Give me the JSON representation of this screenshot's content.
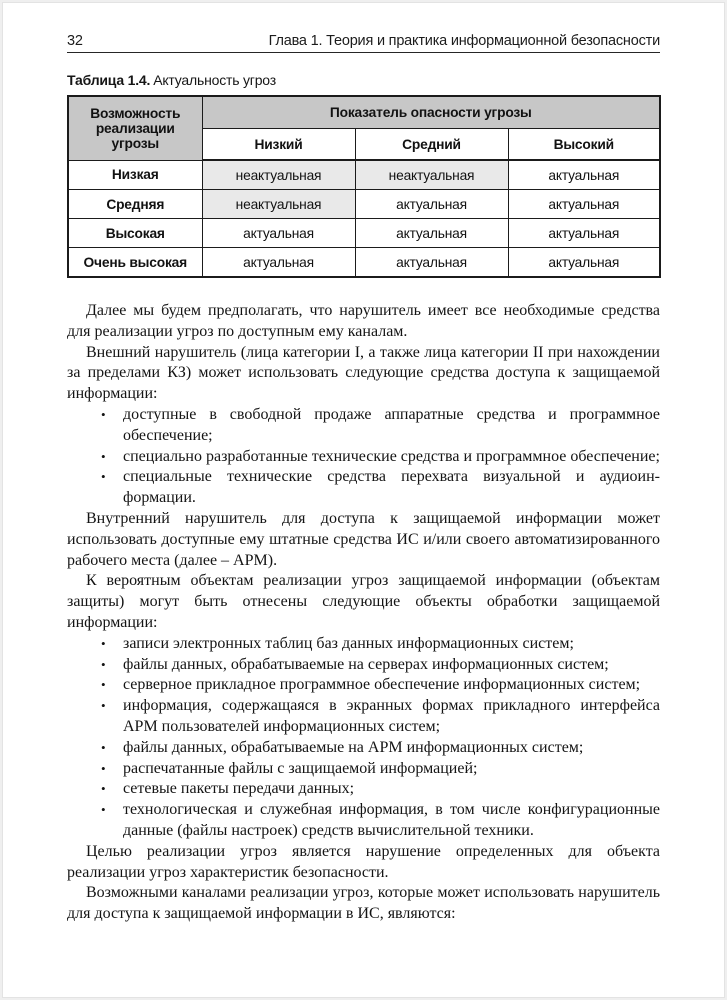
{
  "colors": {
    "header_gray": "#c7c7c7",
    "shaded_cell": "#e9e9e9",
    "table_border": "#1b1b1b"
  },
  "header": {
    "page_number": "32",
    "chapter_title": "Глава 1. Теория и практика информационной безопасности"
  },
  "caption": {
    "label": "Таблица 1.4.",
    "title": "Актуальность угроз"
  },
  "table": {
    "corner_header": "Возможность реализации угрозы",
    "group_header": "Показатель опасности угрозы",
    "col_headers": [
      "Низкий",
      "Средний",
      "Высокий"
    ],
    "rows": [
      {
        "label": "Низкая",
        "cells": [
          {
            "text": "неактуальная",
            "shaded": true
          },
          {
            "text": "неактуальная",
            "shaded": true
          },
          {
            "text": "актуальная",
            "shaded": false
          }
        ]
      },
      {
        "label": "Средняя",
        "cells": [
          {
            "text": "неактуальная",
            "shaded": true
          },
          {
            "text": "актуальная",
            "shaded": false
          },
          {
            "text": "актуальная",
            "shaded": false
          }
        ]
      },
      {
        "label": "Высокая",
        "cells": [
          {
            "text": "актуальная",
            "shaded": false
          },
          {
            "text": "актуальная",
            "shaded": false
          },
          {
            "text": "актуальная",
            "shaded": false
          }
        ]
      },
      {
        "label": "Очень высокая",
        "cells": [
          {
            "text": "актуальная",
            "shaded": false
          },
          {
            "text": "актуальная",
            "shaded": false
          },
          {
            "text": "актуальная",
            "shaded": false
          }
        ]
      }
    ]
  },
  "body": [
    {
      "type": "p",
      "text": "Далее мы будем предполагать, что нарушитель имеет все необходимые средства для реализации угроз по доступным ему каналам."
    },
    {
      "type": "p",
      "text": "Внешний нарушитель (лица категории I, а также лица категории II при на­хождении за пределами КЗ) может использовать следующие средства доступа к защищаемой информации:"
    },
    {
      "type": "ul",
      "items": [
        "доступные в свободной продаже аппаратные средства и программное обеспечение;",
        "специально разработанные технические средства и программное обес­печение;",
        "специальные технические средства перехвата визуальной и аудиоин­формации."
      ]
    },
    {
      "type": "p",
      "text": "Внутренний нарушитель для доступа к защищаемой информации может использовать доступные ему штатные средства ИС и/или своего автомати­зированного рабочего места (далее – АРМ)."
    },
    {
      "type": "p",
      "text": "К вероятным объектам реализации угроз защищаемой информации (объ­ектам защиты) могут быть отнесены следующие объекты обработки защи­щаемой информации:"
    },
    {
      "type": "ul",
      "items": [
        "записи электронных таблиц баз данных информационных систем;",
        "файлы данных, обрабатываемые на серверах информационных систем;",
        "серверное прикладное программное обеспечение информационных си­стем;",
        "информация, содержащаяся в экранных формах прикладного интер­фейса АРМ пользователей информационных систем;",
        "файлы данных, обрабатываемые на АРМ информационных систем;",
        "распечатанные файлы с защищаемой информацией;",
        "сетевые пакеты передачи данных;",
        "технологическая и служебная информация, в том числе конфигурацион­ные данные (файлы настроек) средств вычислительной техники."
      ]
    },
    {
      "type": "p",
      "text": "Целью реализации угроз является нарушение определенных для объекта реализации угроз характеристик безопасности."
    },
    {
      "type": "p",
      "text": "Возможными каналами реализации угроз, которые может использовать нарушитель для доступа к защищаемой информации в ИС, являются:"
    }
  ]
}
